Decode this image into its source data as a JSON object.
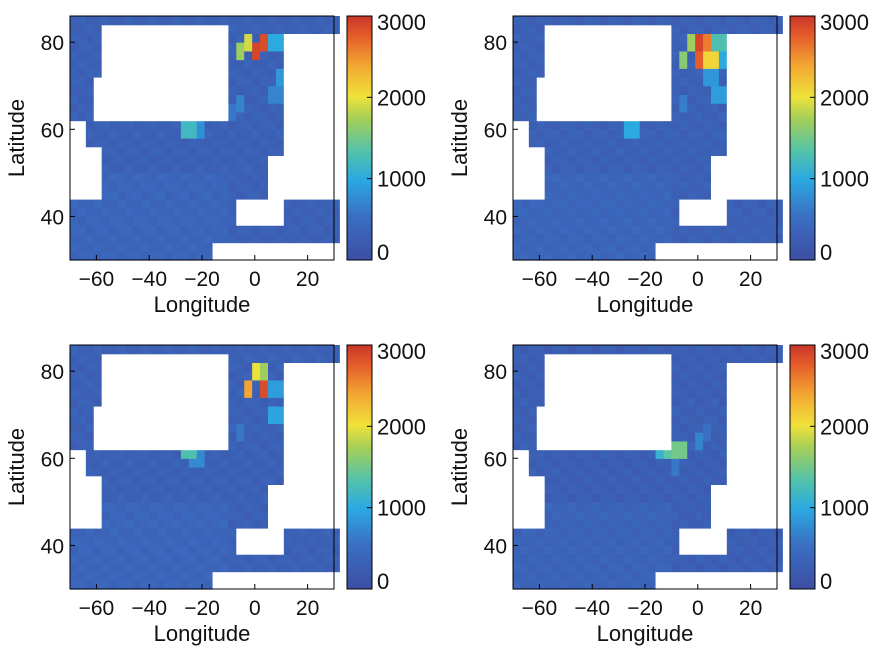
{
  "figure": {
    "panel_count": 4
  },
  "chart_data": [
    {
      "type": "heatmap",
      "panel": "top-left",
      "xlabel": "Longitude",
      "ylabel": "Latitude",
      "xticks": [
        "−60",
        "−40",
        "−20",
        "0",
        "20"
      ],
      "yticks": [
        "40",
        "60",
        "80"
      ],
      "xlim": [
        -70,
        30
      ],
      "ylim": [
        30,
        86
      ],
      "colorbar": {
        "range": [
          0,
          3000
        ],
        "ticks": [
          "0",
          "1000",
          "2000",
          "3000"
        ],
        "colormap": "jet"
      },
      "land_color": "#ffffff",
      "background_value": 250,
      "hotspots": [
        {
          "lon": 0,
          "lat": 78,
          "value": 2900
        },
        {
          "lon": 3,
          "lat": 80,
          "value": 2850
        },
        {
          "lon": -3,
          "lat": 80,
          "value": 1900
        },
        {
          "lon": -6,
          "lat": 78,
          "value": 1700
        },
        {
          "lon": 8,
          "lat": 80,
          "value": 1000
        },
        {
          "lon": 11,
          "lat": 80,
          "value": 900
        },
        {
          "lon": 11,
          "lat": 72,
          "value": 850
        },
        {
          "lon": 8,
          "lat": 68,
          "value": 700
        },
        {
          "lon": -25,
          "lat": 60,
          "value": 1200
        },
        {
          "lon": -22,
          "lat": 60,
          "value": 800
        },
        {
          "lon": -5,
          "lat": 66,
          "value": 700
        },
        {
          "lon": -10,
          "lat": 64,
          "value": 600
        }
      ]
    },
    {
      "type": "heatmap",
      "panel": "top-right",
      "xlabel": "Longitude",
      "ylabel": "Latitude",
      "xticks": [
        "−60",
        "−40",
        "−20",
        "0",
        "20"
      ],
      "yticks": [
        "40",
        "60",
        "80"
      ],
      "xlim": [
        -70,
        30
      ],
      "ylim": [
        30,
        86
      ],
      "colorbar": {
        "range": [
          0,
          3000
        ],
        "ticks": [
          "0",
          "1000",
          "2000",
          "3000"
        ],
        "colormap": "jet"
      },
      "land_color": "#ffffff",
      "background_value": 250,
      "hotspots": [
        {
          "lon": 0,
          "lat": 80,
          "value": 2900
        },
        {
          "lon": 3,
          "lat": 80,
          "value": 2600
        },
        {
          "lon": 0,
          "lat": 76,
          "value": 2750
        },
        {
          "lon": -3,
          "lat": 80,
          "value": 1700
        },
        {
          "lon": -5,
          "lat": 76,
          "value": 1600
        },
        {
          "lon": 5,
          "lat": 76,
          "value": 2100
        },
        {
          "lon": 8,
          "lat": 80,
          "value": 1300
        },
        {
          "lon": 10,
          "lat": 76,
          "value": 1000
        },
        {
          "lon": 5,
          "lat": 72,
          "value": 850
        },
        {
          "lon": 8,
          "lat": 68,
          "value": 900
        },
        {
          "lon": -25,
          "lat": 60,
          "value": 1000
        },
        {
          "lon": -5,
          "lat": 66,
          "value": 650
        }
      ]
    },
    {
      "type": "heatmap",
      "panel": "bottom-left",
      "xlabel": "Longitude",
      "ylabel": "Latitude",
      "xticks": [
        "−60",
        "−40",
        "−20",
        "0",
        "20"
      ],
      "yticks": [
        "40",
        "60",
        "80"
      ],
      "xlim": [
        -70,
        30
      ],
      "ylim": [
        30,
        86
      ],
      "colorbar": {
        "range": [
          0,
          3000
        ],
        "ticks": [
          "0",
          "1000",
          "2000",
          "3000"
        ],
        "colormap": "jet"
      },
      "land_color": "#ffffff",
      "background_value": 250,
      "hotspots": [
        {
          "lon": 3,
          "lat": 76,
          "value": 2850
        },
        {
          "lon": 0,
          "lat": 80,
          "value": 2000
        },
        {
          "lon": -3,
          "lat": 76,
          "value": 2400
        },
        {
          "lon": 3,
          "lat": 80,
          "value": 1700
        },
        {
          "lon": 8,
          "lat": 76,
          "value": 900
        },
        {
          "lon": 8,
          "lat": 70,
          "value": 950
        },
        {
          "lon": -25,
          "lat": 62,
          "value": 1300
        },
        {
          "lon": -22,
          "lat": 60,
          "value": 750
        },
        {
          "lon": -5,
          "lat": 66,
          "value": 600
        }
      ]
    },
    {
      "type": "heatmap",
      "panel": "bottom-right",
      "xlabel": "Longitude",
      "ylabel": "Latitude",
      "xticks": [
        "−60",
        "−40",
        "−20",
        "0",
        "20"
      ],
      "yticks": [
        "40",
        "60",
        "80"
      ],
      "xlim": [
        -70,
        30
      ],
      "ylim": [
        30,
        86
      ],
      "colorbar": {
        "range": [
          0,
          3000
        ],
        "ticks": [
          "0",
          "1000",
          "2000",
          "3000"
        ],
        "colormap": "jet"
      },
      "land_color": "#ffffff",
      "background_value": 220,
      "hotspots": [
        {
          "lon": -10,
          "lat": 62,
          "value": 1400
        },
        {
          "lon": -7,
          "lat": 62,
          "value": 1500
        },
        {
          "lon": -5,
          "lat": 62,
          "value": 1450
        },
        {
          "lon": -13,
          "lat": 62,
          "value": 1100
        },
        {
          "lon": -8,
          "lat": 58,
          "value": 600
        },
        {
          "lon": 0,
          "lat": 64,
          "value": 700
        },
        {
          "lon": 3,
          "lat": 66,
          "value": 550
        }
      ]
    }
  ]
}
